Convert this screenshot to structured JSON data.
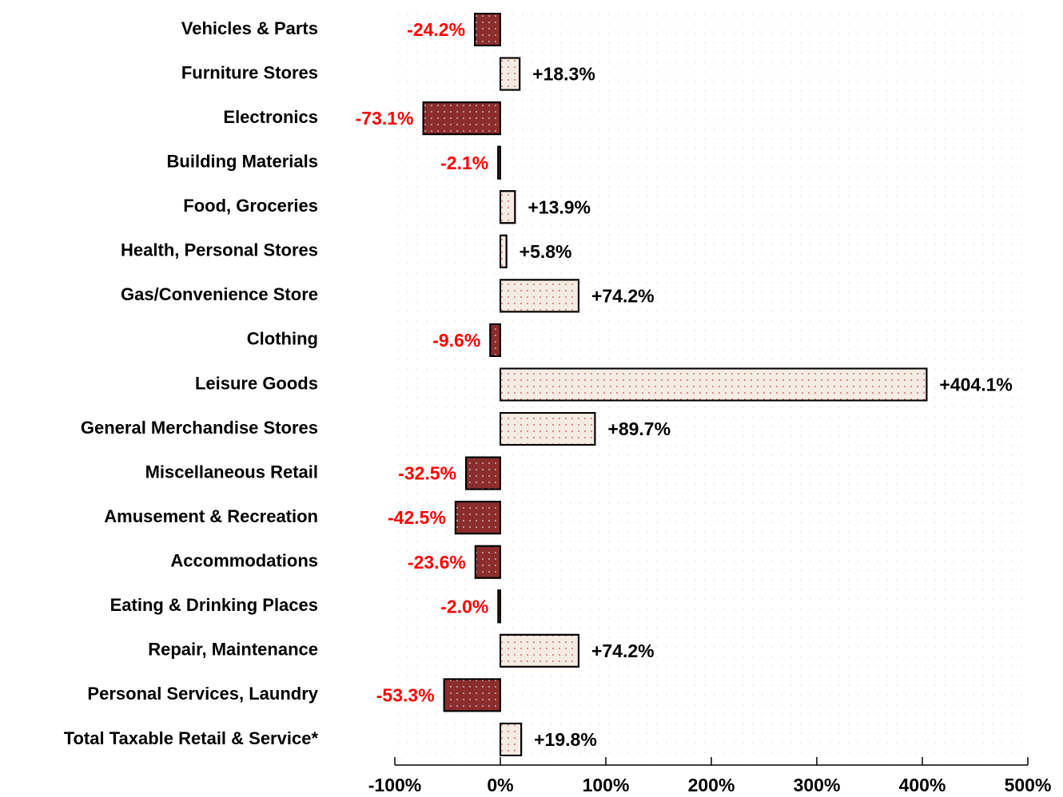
{
  "chart_data": {
    "type": "bar",
    "orientation": "horizontal",
    "categories": [
      "Vehicles & Parts",
      "Furniture Stores",
      "Electronics",
      "Building Materials",
      "Food, Groceries",
      "Health, Personal Stores",
      "Gas/Convenience Store",
      "Clothing",
      "Leisure Goods",
      "General Merchandise Stores",
      "Miscellaneous Retail",
      "Amusement & Recreation",
      "Accommodations",
      "Eating & Drinking Places",
      "Repair, Maintenance",
      "Personal Services, Laundry",
      "Total Taxable Retail & Service*"
    ],
    "values": [
      -24.2,
      18.3,
      -73.1,
      -2.1,
      13.9,
      5.8,
      74.2,
      -9.6,
      404.1,
      89.7,
      -32.5,
      -42.5,
      -23.6,
      -2.0,
      74.2,
      -53.3,
      19.8
    ],
    "value_labels": [
      "-24.2%",
      "+18.3%",
      "-73.1%",
      "-2.1%",
      "+13.9%",
      "+5.8%",
      "+74.2%",
      "-9.6%",
      "+404.1%",
      "+89.7%",
      "-32.5%",
      "-42.5%",
      "-23.6%",
      "-2.0%",
      "+74.2%",
      "-53.3%",
      "+19.8%"
    ],
    "negative_color": "#8b2d2d",
    "positive_color": "#f4ece2",
    "negative_label_color": "#ff0000",
    "positive_label_color": "#000000",
    "xlim": [
      -100,
      500
    ],
    "xticks": [
      {
        "value": -100,
        "label": "-100%"
      },
      {
        "value": 0,
        "label": "0%"
      },
      {
        "value": 100,
        "label": "100%"
      },
      {
        "value": 200,
        "label": "200%"
      },
      {
        "value": 300,
        "label": "300%"
      },
      {
        "value": 400,
        "label": "400%"
      },
      {
        "value": 500,
        "label": "500%"
      }
    ]
  }
}
